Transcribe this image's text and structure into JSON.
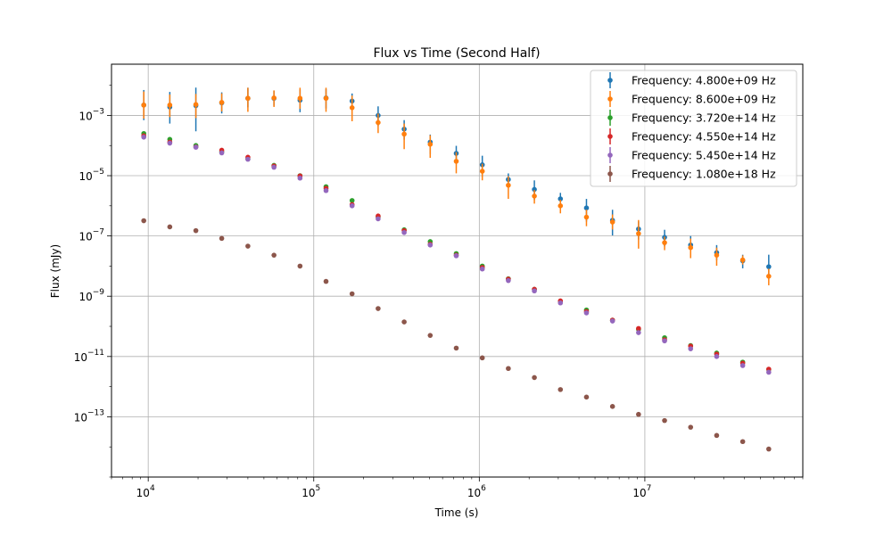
{
  "chart_data": {
    "type": "scatter",
    "title": "Flux vs Time (Second Half)",
    "xlabel": "Time (s)",
    "ylabel": "Flux (mJy)",
    "xscale": "log",
    "yscale": "log",
    "xlim": [
      6000,
      90000000
    ],
    "ylim": [
      1e-15,
      0.05
    ],
    "x_tick_labels": [
      {
        "value": 10000,
        "base": "10",
        "exp": "4"
      },
      {
        "value": 100000,
        "base": "10",
        "exp": "5"
      },
      {
        "value": 1000000,
        "base": "10",
        "exp": "6"
      },
      {
        "value": 10000000,
        "base": "10",
        "exp": "7"
      }
    ],
    "y_tick_labels": [
      {
        "value": 0.001,
        "base": "10",
        "exp": "−3"
      },
      {
        "value": 1e-05,
        "base": "10",
        "exp": "−5"
      },
      {
        "value": 1e-07,
        "base": "10",
        "exp": "−7"
      },
      {
        "value": 1e-09,
        "base": "10",
        "exp": "−9"
      },
      {
        "value": 1e-11,
        "base": "10",
        "exp": "−11"
      },
      {
        "value": 1e-13,
        "base": "10",
        "exp": "−13"
      }
    ],
    "grid": true,
    "legend_position": "top-right",
    "x": [
      9400,
      13500,
      19400,
      27800,
      40000,
      57500,
      82600,
      118600,
      170400,
      244800,
      351700,
      505200,
      725700,
      1042500,
      1497600,
      2151300,
      3090400,
      4439500,
      6377600,
      9161500,
      13160800,
      18905800,
      27158800,
      39014300,
      56045100
    ],
    "series": [
      {
        "name": "Frequency: 4.800e+09 Hz",
        "color": "#1f77b4",
        "y": [
          0.0022,
          0.0019,
          0.0021,
          0.0026,
          0.0037,
          0.0037,
          0.0032,
          0.0038,
          0.003,
          0.001,
          0.00035,
          0.00013,
          5.5e-05,
          2.3e-05,
          7.5e-06,
          3.5e-06,
          1.7e-06,
          8.5e-07,
          3.3e-07,
          1.7e-07,
          9e-08,
          5e-08,
          2.8e-08,
          1.5e-08,
          9.5e-09
        ],
        "err_lo": [
          0.5,
          0.55,
          0.85,
          0.35,
          0.3,
          0.25,
          0.4,
          0.35,
          0.3,
          0.35,
          0.35,
          0.4,
          0.3,
          0.4,
          0.25,
          0.35,
          0.2,
          0.45,
          0.5,
          0.35,
          0.3,
          0.3,
          0.25,
          0.25,
          0.35
        ],
        "err_hi": [
          0.5,
          0.5,
          0.6,
          0.35,
          0.35,
          0.25,
          0.35,
          0.3,
          0.25,
          0.3,
          0.3,
          0.25,
          0.25,
          0.3,
          0.2,
          0.3,
          0.2,
          0.3,
          0.35,
          0.25,
          0.25,
          0.3,
          0.25,
          0.2,
          0.4
        ]
      },
      {
        "name": "Frequency: 8.600e+09 Hz",
        "color": "#ff7f0e",
        "y": [
          0.0022,
          0.0022,
          0.0023,
          0.0027,
          0.0037,
          0.0038,
          0.0037,
          0.0037,
          0.0018,
          0.00058,
          0.00024,
          0.00011,
          3e-05,
          1.4e-05,
          4.8e-06,
          2.1e-06,
          1e-06,
          4.2e-07,
          2.9e-07,
          1.2e-07,
          6e-08,
          4.1e-08,
          2.3e-08,
          1.6e-08,
          4.6e-09
        ],
        "err_lo": [
          0.45,
          0.4,
          0.45,
          0.3,
          0.45,
          0.3,
          0.35,
          0.45,
          0.45,
          0.35,
          0.5,
          0.45,
          0.4,
          0.3,
          0.45,
          0.25,
          0.25,
          0.3,
          0.25,
          0.5,
          0.25,
          0.35,
          0.35,
          0.15,
          0.3
        ],
        "err_hi": [
          0.45,
          0.35,
          0.35,
          0.3,
          0.35,
          0.25,
          0.35,
          0.35,
          0.4,
          0.3,
          0.35,
          0.3,
          0.3,
          0.25,
          0.3,
          0.2,
          0.2,
          0.25,
          0.25,
          0.45,
          0.2,
          0.3,
          0.25,
          0.15,
          0.25
        ]
      },
      {
        "name": "Frequency: 3.720e+14 Hz",
        "color": "#2ca02c",
        "y": [
          0.00025,
          0.00016,
          0.0001,
          6.2e-05,
          3.6e-05,
          2.2e-05,
          1e-05,
          4.3e-06,
          1.5e-06,
          4.3e-07,
          1.6e-07,
          6.5e-08,
          2.6e-08,
          1e-08,
          3.8e-09,
          1.7e-09,
          6.8e-10,
          3.5e-10,
          1.6e-10,
          8e-11,
          4.2e-11,
          2.3e-11,
          1.3e-11,
          6.5e-12,
          3.7e-12
        ],
        "err_lo": [],
        "err_hi": []
      },
      {
        "name": "Frequency: 4.550e+14 Hz",
        "color": "#d62728",
        "y": [
          0.00021,
          0.00013,
          9e-05,
          7e-05,
          4.1e-05,
          2.1e-05,
          9.8e-06,
          3.8e-06,
          1.1e-06,
          4.6e-07,
          1.5e-07,
          5.3e-08,
          2.3e-08,
          9e-09,
          3.7e-09,
          1.7e-09,
          7e-10,
          3.1e-10,
          1.6e-10,
          8.5e-11,
          3.6e-11,
          2.2e-11,
          1.2e-11,
          6e-12,
          3.8e-12
        ],
        "err_lo": [],
        "err_hi": []
      },
      {
        "name": "Frequency: 5.450e+14 Hz",
        "color": "#9467bd",
        "y": [
          0.00019,
          0.00012,
          8.8e-05,
          5.7e-05,
          3.5e-05,
          1.9e-05,
          8.3e-06,
          3.2e-06,
          1e-06,
          3.7e-07,
          1.3e-07,
          5e-08,
          2.2e-08,
          8e-09,
          3.3e-09,
          1.5e-09,
          6e-10,
          2.8e-10,
          1.5e-10,
          6.2e-11,
          3.3e-11,
          1.8e-11,
          1e-11,
          5e-12,
          3e-12
        ],
        "err_lo": [],
        "err_hi": []
      },
      {
        "name": "Frequency: 1.080e+18 Hz",
        "color": "#8c564b",
        "y": [
          3.2e-07,
          2e-07,
          1.5e-07,
          8.3e-08,
          4.6e-08,
          2.3e-08,
          1e-08,
          3.1e-09,
          1.2e-09,
          3.9e-10,
          1.4e-10,
          5e-11,
          1.9e-11,
          9e-12,
          4e-12,
          2e-12,
          8e-13,
          4.5e-13,
          2.2e-13,
          1.2e-13,
          7.5e-14,
          4.5e-14,
          2.4e-14,
          1.5e-14,
          8.5e-15
        ],
        "err_lo": [],
        "err_hi": []
      }
    ]
  }
}
